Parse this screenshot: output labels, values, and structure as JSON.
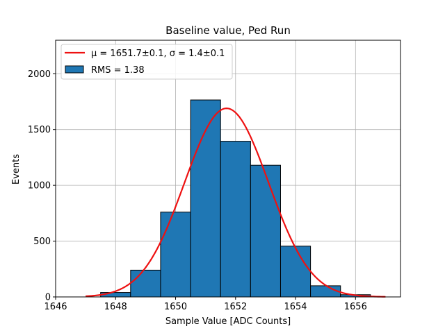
{
  "chart_data": {
    "type": "bar",
    "title": "Baseline value, Ped Run",
    "xlabel": "Sample Value [ADC Counts]",
    "ylabel": "Events",
    "xlim": [
      1646,
      1657.5
    ],
    "ylim": [
      0,
      2300
    ],
    "xticks": [
      1646,
      1648,
      1650,
      1652,
      1654,
      1656
    ],
    "yticks": [
      0,
      500,
      1000,
      1500,
      2000
    ],
    "grid": true,
    "legend_position": "top-left",
    "bins": [
      {
        "left": 1647.5,
        "right": 1648.5,
        "value": 40
      },
      {
        "left": 1648.5,
        "right": 1649.5,
        "value": 240
      },
      {
        "left": 1649.5,
        "right": 1650.5,
        "value": 760
      },
      {
        "left": 1650.5,
        "right": 1651.5,
        "value": 1765
      },
      {
        "left": 1651.5,
        "right": 1652.5,
        "value": 1395
      },
      {
        "left": 1652.5,
        "right": 1653.5,
        "value": 1180
      },
      {
        "left": 1653.5,
        "right": 1654.5,
        "value": 455
      },
      {
        "left": 1654.5,
        "right": 1655.5,
        "value": 100
      },
      {
        "left": 1655.5,
        "right": 1656.5,
        "value": 20
      }
    ],
    "fit": {
      "mu": 1651.7,
      "sigma": 1.4,
      "amplitude": 1690,
      "x_range": [
        1647,
        1657
      ]
    },
    "series": [
      {
        "name": "$\\mu = 1651.7 \\pm 0.1, \\sigma = 1.4 \\pm 0.1$",
        "label": "μ = 1651.7±0.1, σ = 1.4±0.1",
        "kind": "line",
        "color": "#ee1111"
      },
      {
        "name": "RMS = 1.38",
        "label": "RMS = 1.38",
        "kind": "bar",
        "color": "#1f77b4"
      }
    ]
  }
}
